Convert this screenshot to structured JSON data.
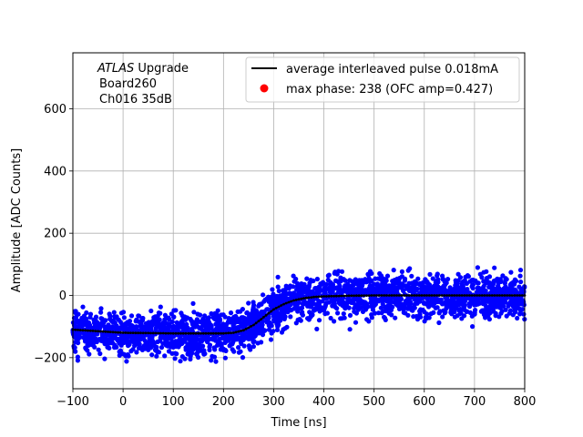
{
  "chart_data": {
    "type": "scatter",
    "xlabel": "Time [ns]",
    "ylabel": "Amplitude [ADC Counts]",
    "xlim": [
      -100,
      800
    ],
    "ylim": [
      -300,
      780
    ],
    "xticks": [
      -100,
      0,
      100,
      200,
      300,
      400,
      500,
      600,
      700,
      800
    ],
    "yticks": [
      -200,
      0,
      200,
      400,
      600
    ],
    "xtick_labels": [
      "−100",
      "0",
      "100",
      "200",
      "300",
      "400",
      "500",
      "600",
      "700",
      "800"
    ],
    "ytick_labels": [
      "−200",
      "0",
      "200",
      "400",
      "600"
    ],
    "grid": true,
    "legend_position": "top-right",
    "annotation": {
      "line1_italic": "ATLAS",
      "line1_rest": " Upgrade",
      "line2": "Board260",
      "line3": "Ch016 35dB"
    },
    "series": [
      {
        "name": "average interleaved pulse 0.018mA",
        "kind": "line",
        "color": "#000000",
        "x": [
          -100,
          0,
          100,
          200,
          220,
          240,
          260,
          280,
          300,
          320,
          340,
          360,
          380,
          400,
          450,
          500,
          550,
          600,
          650,
          700,
          750,
          800
        ],
        "y": [
          -110,
          -120,
          -122,
          -122,
          -120,
          -112,
          -95,
          -70,
          -45,
          -28,
          -16,
          -9,
          -5,
          -3,
          -1,
          0,
          0,
          0,
          0,
          0,
          0,
          0
        ]
      },
      {
        "name": "max phase: 238 (OFC amp=0.427)",
        "kind": "point",
        "color": "#ff0000",
        "x": [],
        "y": []
      },
      {
        "name": "samples",
        "kind": "scatter",
        "color": "#0000ff",
        "noise_band": 45
      }
    ]
  }
}
